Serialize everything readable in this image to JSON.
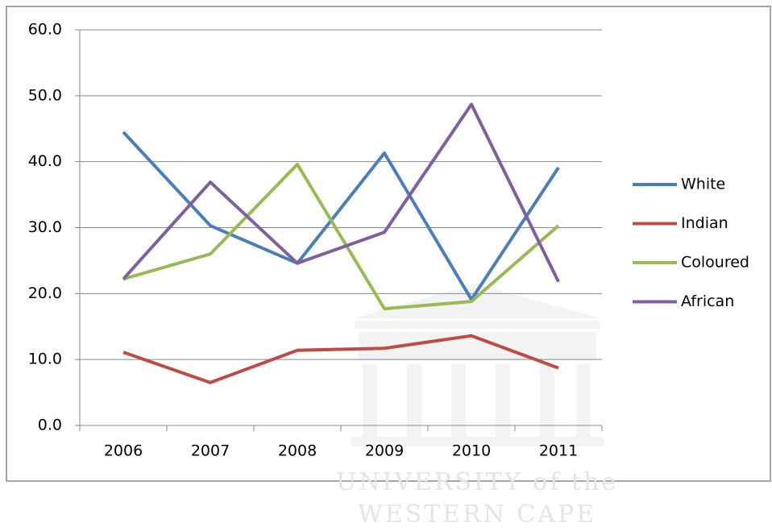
{
  "chart_data": {
    "type": "line",
    "categories": [
      "2006",
      "2007",
      "2008",
      "2009",
      "2010",
      "2011"
    ],
    "series": [
      {
        "name": "White",
        "color": "#4a7ebb",
        "values": [
          44.5,
          30.3,
          24.6,
          41.3,
          19.1,
          39.1
        ]
      },
      {
        "name": "Indian",
        "color": "#be4b48",
        "values": [
          11.1,
          6.5,
          11.4,
          11.7,
          13.6,
          8.7
        ]
      },
      {
        "name": "Coloured",
        "color": "#98b954",
        "values": [
          22.2,
          26.0,
          39.6,
          17.7,
          18.8,
          30.3
        ]
      },
      {
        "name": "African",
        "color": "#7d60a0",
        "values": [
          22.2,
          36.9,
          24.6,
          29.3,
          48.7,
          21.8
        ]
      }
    ],
    "ylim": [
      0,
      60
    ],
    "yticks": [
      {
        "value": 0,
        "label": "0.0"
      },
      {
        "value": 10,
        "label": "10.0"
      },
      {
        "value": 20,
        "label": "20.0"
      },
      {
        "value": 30,
        "label": "30.0"
      },
      {
        "value": 40,
        "label": "40.0"
      },
      {
        "value": 50,
        "label": "50.0"
      },
      {
        "value": 60,
        "label": "60.0"
      }
    ],
    "grid": true,
    "legend": "right"
  },
  "watermark": {
    "line1": "UNIVERSITY of the",
    "line2": "WESTERN CAPE"
  }
}
